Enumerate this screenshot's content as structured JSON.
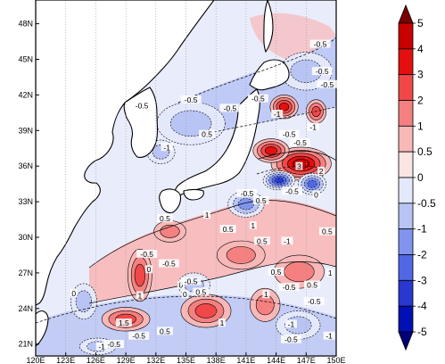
{
  "map": {
    "lat_labels": [
      "48N",
      "45N",
      "42N",
      "39N",
      "36N",
      "33N",
      "30N",
      "27N",
      "24N",
      "21N"
    ],
    "lon_labels": [
      "120E",
      "123E",
      "126E",
      "129E",
      "132E",
      "135E",
      "138E",
      "141E",
      "144E",
      "147E",
      "150E"
    ],
    "lat_range": [
      20,
      50
    ],
    "lon_range": [
      120,
      150
    ],
    "grid": "dotted lon lines",
    "land_color": "#ffffff",
    "coastline_color": "#000000"
  },
  "colorbar": {
    "levels": [
      "5",
      "4",
      "3",
      "2",
      "1",
      "0.5",
      "0",
      "-0.5",
      "-1",
      "-2",
      "-3",
      "-4",
      "-5"
    ],
    "colors": [
      "#7a0000",
      "#c80000",
      "#e41010",
      "#f04848",
      "#f48080",
      "#f8b8b8",
      "#fbe4e4",
      "#e4e8fb",
      "#b8c4f4",
      "#8094ee",
      "#5068e4",
      "#2838d0",
      "#0010b4",
      "#00007a"
    ],
    "extend": "both"
  },
  "contour_labels": [
    {
      "text": "-0.5",
      "lon": 142.2,
      "lat": 41.6
    },
    {
      "text": "-0.5",
      "lon": 148.4,
      "lat": 46.2
    },
    {
      "text": "-0.5",
      "lon": 148.6,
      "lat": 43.9
    },
    {
      "text": "-0.5",
      "lon": 149.1,
      "lat": 42.8
    },
    {
      "text": "-0.5",
      "lon": 130.6,
      "lat": 41.0
    },
    {
      "text": "-0.5",
      "lon": 135.5,
      "lat": 41.5
    },
    {
      "text": "-0.5",
      "lon": 139.4,
      "lat": 40.8
    },
    {
      "text": "-1",
      "lon": 144.1,
      "lat": 40.3
    },
    {
      "text": "-1",
      "lon": 147.7,
      "lat": 39.2
    },
    {
      "text": "-0.5",
      "lon": 145.3,
      "lat": 38.6
    },
    {
      "text": "-0.5",
      "lon": 146.4,
      "lat": 37.9
    },
    {
      "text": "0.5",
      "lon": 137.1,
      "lat": 38.6
    },
    {
      "text": "-1",
      "lon": 133.1,
      "lat": 37.5
    },
    {
      "text": "3",
      "lon": 146.3,
      "lat": 35.9
    },
    {
      "text": "2",
      "lon": 148.5,
      "lat": 35.5
    },
    {
      "text": "-0.5",
      "lon": 145.6,
      "lat": 33.8
    },
    {
      "text": "-0.5",
      "lon": 141.1,
      "lat": 33.6
    },
    {
      "text": "0.5",
      "lon": 142.5,
      "lat": 33.0
    },
    {
      "text": "1",
      "lon": 137.1,
      "lat": 31.8
    },
    {
      "text": "0.5",
      "lon": 132.9,
      "lat": 31.5
    },
    {
      "text": "0.5",
      "lon": 139.2,
      "lat": 30.6
    },
    {
      "text": "0.5",
      "lon": 142.6,
      "lat": 29.6
    },
    {
      "text": "1",
      "lon": 141.7,
      "lat": 30.9
    },
    {
      "text": "-1",
      "lon": 145.1,
      "lat": 29.6
    },
    {
      "text": "0.5",
      "lon": 149.1,
      "lat": 30.4
    },
    {
      "text": "-0.5",
      "lon": 131.1,
      "lat": 28.5
    },
    {
      "text": "-0.5",
      "lon": 133.3,
      "lat": 27.7
    },
    {
      "text": "1",
      "lon": 130.4,
      "lat": 25.0
    },
    {
      "text": "0",
      "lon": 134.5,
      "lat": 25.9
    },
    {
      "text": "-0.5",
      "lon": 135.5,
      "lat": 26.2
    },
    {
      "text": "0",
      "lon": 134.9,
      "lat": 25.1
    },
    {
      "text": "0.5",
      "lon": 136.5,
      "lat": 25.3
    },
    {
      "text": "0.5",
      "lon": 144.0,
      "lat": 27.0
    },
    {
      "text": "-0.5",
      "lon": 145.3,
      "lat": 25.7
    },
    {
      "text": "0.5",
      "lon": 147.6,
      "lat": 25.9
    },
    {
      "text": "1",
      "lon": 149.4,
      "lat": 26.9
    },
    {
      "text": "1",
      "lon": 143.0,
      "lat": 25.1
    },
    {
      "text": "-0.5",
      "lon": 147.8,
      "lat": 24.5
    },
    {
      "text": "-1",
      "lon": 145.5,
      "lat": 22.6
    },
    {
      "text": "-0.5",
      "lon": 145.5,
      "lat": 21.3
    },
    {
      "text": "-1",
      "lon": 149.3,
      "lat": 21.6
    },
    {
      "text": "1.5",
      "lon": 128.8,
      "lat": 22.7
    },
    {
      "text": "0.5",
      "lon": 132.9,
      "lat": 22.0
    },
    {
      "text": "1",
      "lon": 138.6,
      "lat": 22.7
    },
    {
      "text": "-0.5",
      "lon": 127.8,
      "lat": 20.9
    },
    {
      "text": "-1",
      "lon": 126.6,
      "lat": 20.7
    },
    {
      "text": "-0.5",
      "lon": 130.3,
      "lat": 21.6
    },
    {
      "text": "0",
      "lon": 148.0,
      "lat": 33.5
    },
    {
      "text": "0",
      "lon": 123.8,
      "lat": 25.2
    },
    {
      "text": "0",
      "lon": 131.3,
      "lat": 27.2
    }
  ],
  "anomaly_blobs": [
    {
      "lon": 146.5,
      "lat": 36.2,
      "rx": 3.0,
      "ry": 1.4,
      "level": 4
    },
    {
      "lon": 143.5,
      "lat": 37.3,
      "rx": 1.8,
      "ry": 1.0,
      "level": 3
    },
    {
      "lon": 144.8,
      "lat": 41.0,
      "rx": 1.4,
      "ry": 1.0,
      "level": 3
    },
    {
      "lon": 148.0,
      "lat": 40.6,
      "rx": 1.0,
      "ry": 1.0,
      "level": 2
    },
    {
      "lon": 144.3,
      "lat": 34.8,
      "rx": 1.6,
      "ry": 0.8,
      "level": -4
    },
    {
      "lon": 147.6,
      "lat": 34.5,
      "rx": 1.4,
      "ry": 0.9,
      "level": -3
    },
    {
      "lon": 141.0,
      "lat": 32.8,
      "rx": 1.8,
      "ry": 1.1,
      "level": -2
    },
    {
      "lon": 133.4,
      "lat": 30.5,
      "rx": 1.6,
      "ry": 0.9,
      "level": 1
    },
    {
      "lon": 130.4,
      "lat": 26.8,
      "rx": 1.2,
      "ry": 2.2,
      "level": 2
    },
    {
      "lon": 129.0,
      "lat": 23.1,
      "rx": 2.4,
      "ry": 1.0,
      "level": 2
    },
    {
      "lon": 137.0,
      "lat": 23.8,
      "rx": 2.5,
      "ry": 1.4,
      "level": 2
    },
    {
      "lon": 146.3,
      "lat": 27.1,
      "rx": 2.5,
      "ry": 1.4,
      "level": 1
    },
    {
      "lon": 142.9,
      "lat": 24.3,
      "rx": 1.5,
      "ry": 1.4,
      "level": 1
    },
    {
      "lon": 135.8,
      "lat": 26.0,
      "rx": 1.6,
      "ry": 1.0,
      "level": -1
    },
    {
      "lon": 146.2,
      "lat": 22.6,
      "rx": 2.2,
      "ry": 1.2,
      "level": -1
    },
    {
      "lon": 126.2,
      "lat": 20.8,
      "rx": 1.8,
      "ry": 0.7,
      "level": -1
    },
    {
      "lon": 135.5,
      "lat": 39.6,
      "rx": 3.4,
      "ry": 1.8,
      "level": -1
    },
    {
      "lon": 147.0,
      "lat": 44.0,
      "rx": 2.6,
      "ry": 1.6,
      "level": -1
    },
    {
      "lon": 132.5,
      "lat": 37.2,
      "rx": 1.4,
      "ry": 1.0,
      "level": -1
    },
    {
      "lon": 140.5,
      "lat": 28.5,
      "rx": 2.4,
      "ry": 1.2,
      "level": 1
    },
    {
      "lon": 124.8,
      "lat": 24.6,
      "rx": 1.3,
      "ry": 1.5,
      "level": -1
    }
  ]
}
